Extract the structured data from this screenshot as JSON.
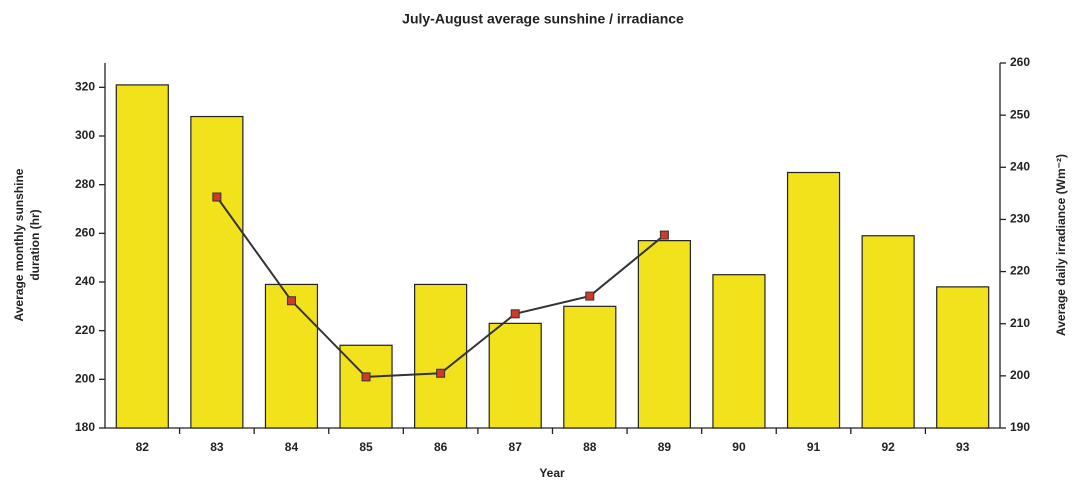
{
  "chart_data": {
    "type": "bar",
    "title": "July-August average sunshine / irradiance",
    "x_label": "Year",
    "y_label": [
      "Average monthly sunshine",
      "duration (hr)"
    ],
    "y2_label": "Average daily irradiance (Wm⁻²)",
    "categories": [
      "82",
      "83",
      "84",
      "85",
      "86",
      "87",
      "88",
      "89",
      "90",
      "91",
      "92",
      "93"
    ],
    "series": [
      {
        "type": "bar",
        "color": "#f2e21c",
        "values": [
          321,
          308,
          239,
          214,
          239,
          223,
          230,
          257,
          243,
          285,
          259,
          238
        ]
      },
      {
        "type": "line",
        "axis": "y2",
        "color": "#333333",
        "marker_color": "#d03a2a",
        "values": [
          null,
          234.3,
          214.4,
          199.8,
          200.5,
          211.9,
          215.3,
          227,
          null,
          null,
          null,
          null
        ]
      }
    ],
    "ylim": [
      180,
      330
    ],
    "yticks": [
      180,
      200,
      220,
      240,
      260,
      280,
      300,
      320
    ],
    "y2lim": [
      190,
      260
    ],
    "y2ticks": [
      190,
      200,
      210,
      220,
      230,
      240,
      250,
      260
    ]
  }
}
